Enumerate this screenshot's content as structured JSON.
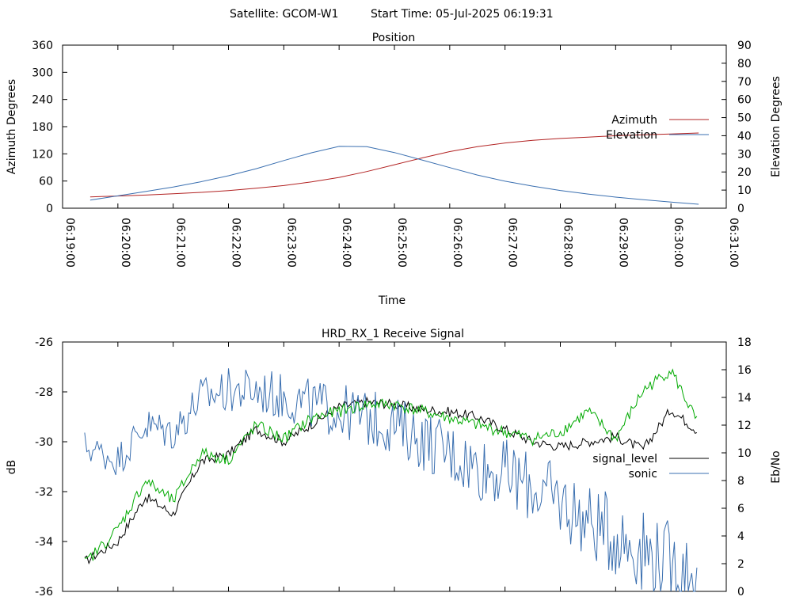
{
  "header": {
    "satellite": "Satellite: GCOM-W1",
    "start_time": "Start Time: 05-Jul-2025 06:19:31"
  },
  "chart_data": [
    {
      "type": "line",
      "title": "Position",
      "xlabel": "Time",
      "ylabel_left": "Azimuth Degrees",
      "ylabel_right": "Elevation Degrees",
      "x_ticks": [
        "06:19:00",
        "06:20:00",
        "06:21:00",
        "06:22:00",
        "06:23:00",
        "06:24:00",
        "06:25:00",
        "06:26:00",
        "06:27:00",
        "06:28:00",
        "06:29:00",
        "06:30:00",
        "06:31:00"
      ],
      "xlim_minutes": [
        0,
        12
      ],
      "ylim_left": [
        0,
        360
      ],
      "ylim_right": [
        0,
        90
      ],
      "y_ticks_left": [
        "0",
        "60",
        "120",
        "180",
        "240",
        "300",
        "360"
      ],
      "y_ticks_right": [
        "0",
        "10",
        "20",
        "30",
        "40",
        "50",
        "60",
        "70",
        "80",
        "90"
      ],
      "legend_position": "right",
      "series": [
        {
          "name": "Azimuth",
          "axis": "left",
          "color": "#b22222",
          "x_minutes": [
            0.5,
            1.0,
            1.5,
            2.0,
            2.5,
            3.0,
            3.5,
            4.0,
            4.5,
            5.0,
            5.5,
            6.0,
            6.5,
            7.0,
            7.5,
            8.0,
            8.5,
            9.0,
            9.5,
            10.0,
            10.5,
            11.0,
            11.5
          ],
          "values": [
            25,
            27,
            29,
            32,
            35,
            39,
            44,
            50,
            58,
            68,
            81,
            96,
            111,
            125,
            136,
            144,
            150,
            154,
            157,
            160,
            162,
            164,
            166
          ]
        },
        {
          "name": "Elevation",
          "axis": "right",
          "color": "#3a6fb0",
          "x_minutes": [
            0.5,
            1.0,
            1.5,
            2.0,
            2.5,
            3.0,
            3.5,
            4.0,
            4.5,
            5.0,
            5.5,
            6.0,
            6.5,
            7.0,
            7.5,
            8.0,
            8.5,
            9.0,
            9.5,
            10.0,
            10.5,
            11.0,
            11.5
          ],
          "values": [
            4.5,
            6.8,
            9.2,
            11.7,
            14.6,
            17.9,
            21.8,
            26.3,
            30.6,
            34.1,
            34.0,
            30.7,
            26.6,
            22.4,
            18.3,
            14.9,
            12.2,
            9.8,
            7.8,
            6.1,
            4.7,
            3.4,
            2.2
          ]
        }
      ]
    },
    {
      "type": "line",
      "title": "HRD_RX_1 Receive Signal",
      "ylabel_left": "dB",
      "ylabel_right": "Eb/No",
      "xlim_minutes": [
        0,
        12
      ],
      "ylim_left": [
        -36,
        -26
      ],
      "ylim_right": [
        0,
        18
      ],
      "y_ticks_left": [
        "-26",
        "-28",
        "-30",
        "-32",
        "-34",
        "-36"
      ],
      "y_ticks_right": [
        "0",
        "2",
        "4",
        "6",
        "8",
        "10",
        "12",
        "14",
        "16",
        "18"
      ],
      "legend_position": "right",
      "series": [
        {
          "name": "signal_level",
          "axis": "left",
          "color": "#000000",
          "x_minutes": [
            0.4,
            1.0,
            1.5,
            2.0,
            2.5,
            3.0,
            3.5,
            4.0,
            4.5,
            5.0,
            5.5,
            6.0,
            6.5,
            7.0,
            7.5,
            8.0,
            8.5,
            9.0,
            9.5,
            10.0,
            10.5,
            11.0,
            11.5
          ],
          "values": [
            -34.8,
            -34.0,
            -32.2,
            -32.9,
            -30.8,
            -30.5,
            -29.5,
            -30.0,
            -29.3,
            -28.6,
            -28.4,
            -28.5,
            -28.7,
            -28.8,
            -29.0,
            -29.5,
            -30.0,
            -30.2,
            -30.0,
            -29.8,
            -30.3,
            -28.7,
            -29.6
          ]
        },
        {
          "name": "sonic",
          "axis": "right",
          "color": "#3a6fb0",
          "x_minutes": [
            0.4,
            1.0,
            1.5,
            2.0,
            2.5,
            3.0,
            3.5,
            4.0,
            4.5,
            5.0,
            5.5,
            6.0,
            6.5,
            7.0,
            7.5,
            8.0,
            8.5,
            9.0,
            9.5,
            10.0,
            10.5,
            11.0,
            11.5
          ],
          "values": [
            10.5,
            9.5,
            12.0,
            11.5,
            14.0,
            14.5,
            14.5,
            14.0,
            13.5,
            13.0,
            12.5,
            12.0,
            11.0,
            10.0,
            9.0,
            8.5,
            7.5,
            6.5,
            5.0,
            4.0,
            3.0,
            2.0,
            1.0
          ]
        },
        {
          "name": "",
          "axis": "right",
          "color": "#00aa00",
          "x_minutes": [
            0.4,
            1.0,
            1.5,
            2.0,
            2.5,
            3.0,
            3.5,
            4.0,
            4.5,
            5.0,
            5.5,
            6.0,
            6.5,
            7.0,
            7.5,
            8.0,
            8.5,
            9.0,
            9.5,
            10.0,
            10.5,
            11.0,
            11.5
          ],
          "values": [
            2.0,
            4.5,
            8.0,
            6.5,
            10.0,
            9.5,
            12.0,
            11.0,
            12.5,
            13.0,
            13.5,
            13.5,
            13.0,
            12.5,
            12.0,
            11.5,
            11.0,
            11.5,
            13.0,
            11.0,
            14.5,
            16.0,
            12.0
          ]
        }
      ]
    }
  ]
}
